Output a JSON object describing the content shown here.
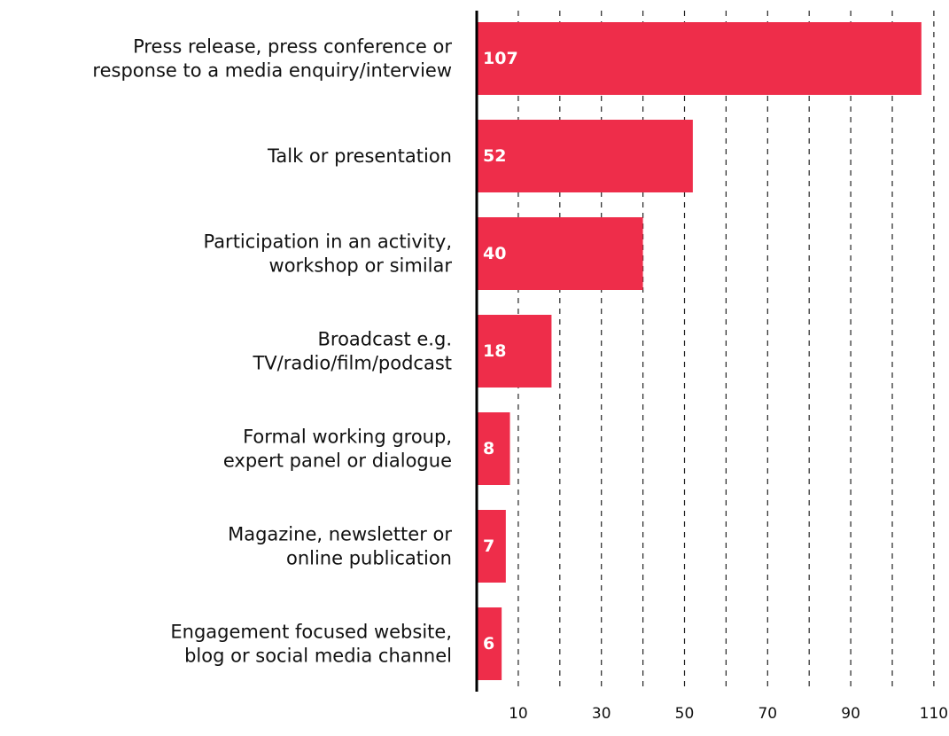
{
  "chart_data": {
    "type": "bar",
    "orientation": "horizontal",
    "categories": [
      [
        "Press release, press conference or",
        "response to a media enquiry/interview"
      ],
      [
        "Talk or presentation"
      ],
      [
        "Participation in an activity,",
        "workshop or similar"
      ],
      [
        "Broadcast e.g.",
        "TV/radio/film/podcast"
      ],
      [
        "Formal working group,",
        "expert panel or dialogue"
      ],
      [
        "Magazine, newsletter or",
        "online publication"
      ],
      [
        "Engagement focused website,",
        "blog or social media channel"
      ]
    ],
    "values": [
      107,
      52,
      40,
      18,
      8,
      7,
      6
    ],
    "data_labels": [
      "107",
      "52",
      "40",
      "18",
      "8",
      "7",
      "6"
    ],
    "xlim": [
      0,
      110
    ],
    "gridlines": [
      10,
      20,
      30,
      40,
      50,
      60,
      70,
      80,
      90,
      100,
      110
    ],
    "x_tick_labels": [
      "10",
      "30",
      "50",
      "70",
      "90",
      "110"
    ],
    "x_tick_values": [
      10,
      30,
      50,
      70,
      90,
      110
    ],
    "grid": "dashed vertical",
    "bar_color": "#ee2d4a",
    "title": "",
    "xlabel": "",
    "ylabel": ""
  }
}
